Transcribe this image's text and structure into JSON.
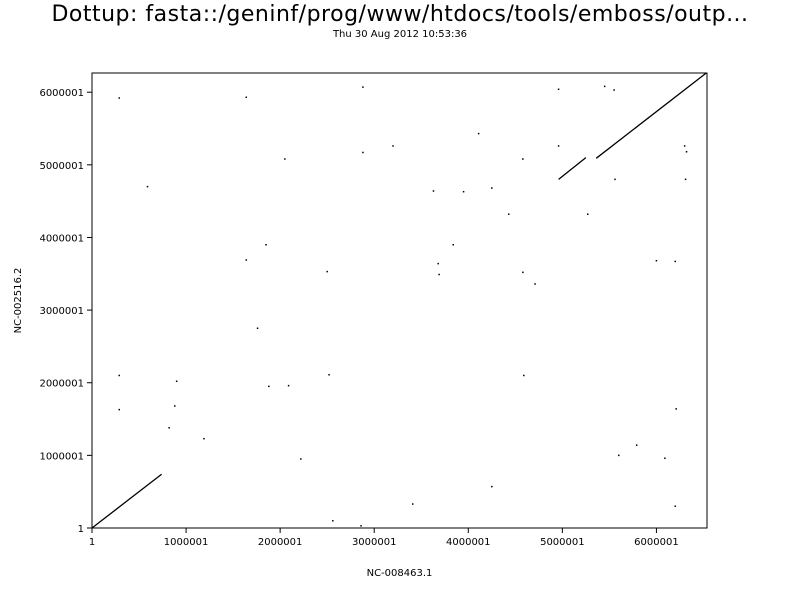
{
  "header": {
    "title": "Dottup: fasta::/geninf/prog/www/htdocs/tools/emboss/outp...",
    "subtitle": "Thu 30 Aug 2012 10:53:36"
  },
  "chart_data": {
    "type": "scatter",
    "title": "Dottup: fasta::/geninf/prog/www/htdocs/tools/emboss/outp...",
    "subtitle": "Thu 30 Aug 2012 10:53:36",
    "xlabel": "NC-008463.1",
    "ylabel": "NC-002516.2",
    "xlim": [
      1,
      6537648
    ],
    "ylim": [
      1,
      6264404
    ],
    "x_ticks": [
      1,
      1000001,
      2000001,
      3000001,
      4000001,
      5000001,
      6000001
    ],
    "x_tick_labels": [
      "1",
      "1000001",
      "2000001",
      "3000001",
      "4000001",
      "5000001",
      "6000001"
    ],
    "y_ticks": [
      1,
      1000001,
      2000001,
      3000001,
      4000001,
      5000001,
      6000001
    ],
    "y_tick_labels": [
      "1",
      "1000001",
      "2000001",
      "3000001",
      "4000001",
      "5000001",
      "6000001"
    ],
    "grid": false,
    "segments": [
      {
        "x1": 1,
        "y1": 1,
        "x2": 740000,
        "y2": 740000
      },
      {
        "x1": 4960000,
        "y1": 4800000,
        "x2": 5250000,
        "y2": 5100000
      },
      {
        "x1": 5360000,
        "y1": 5090000,
        "x2": 6530000,
        "y2": 6264000
      }
    ],
    "points": [
      [
        290000,
        5920000
      ],
      [
        590000,
        4700000
      ],
      [
        290000,
        2100000
      ],
      [
        290000,
        1630000
      ],
      [
        900000,
        2020000
      ],
      [
        880000,
        1680000
      ],
      [
        820000,
        1380000
      ],
      [
        1190000,
        1230000
      ],
      [
        1640000,
        5930000
      ],
      [
        1640000,
        3690000
      ],
      [
        1760000,
        2750000
      ],
      [
        1850000,
        3900000
      ],
      [
        1880000,
        1950000
      ],
      [
        2050000,
        5080000
      ],
      [
        2090000,
        1960000
      ],
      [
        2220000,
        950000
      ],
      [
        2500000,
        3530000
      ],
      [
        2520000,
        2110000
      ],
      [
        2560000,
        100000
      ],
      [
        2860000,
        30000
      ],
      [
        2880000,
        6070000
      ],
      [
        2880000,
        5170000
      ],
      [
        3200000,
        5260000
      ],
      [
        3410000,
        330000
      ],
      [
        3630000,
        4640000
      ],
      [
        3680000,
        3640000
      ],
      [
        3690000,
        3490000
      ],
      [
        3840000,
        3900000
      ],
      [
        3950000,
        4630000
      ],
      [
        4110000,
        5430000
      ],
      [
        4250000,
        4680000
      ],
      [
        4250000,
        570000
      ],
      [
        4430000,
        4320000
      ],
      [
        4580000,
        5080000
      ],
      [
        4580000,
        3520000
      ],
      [
        4590000,
        2100000
      ],
      [
        4710000,
        3360000
      ],
      [
        4960000,
        6040000
      ],
      [
        4960000,
        5260000
      ],
      [
        5270000,
        4320000
      ],
      [
        5450000,
        6080000
      ],
      [
        5550000,
        6030000
      ],
      [
        5560000,
        4800000
      ],
      [
        5600000,
        1000000
      ],
      [
        5790000,
        1140000
      ],
      [
        6000000,
        3680000
      ],
      [
        6090000,
        960000
      ],
      [
        6200000,
        3670000
      ],
      [
        6210000,
        1640000
      ],
      [
        6200000,
        300000
      ],
      [
        6300000,
        5260000
      ],
      [
        6320000,
        5180000
      ],
      [
        6310000,
        4800000
      ]
    ]
  }
}
